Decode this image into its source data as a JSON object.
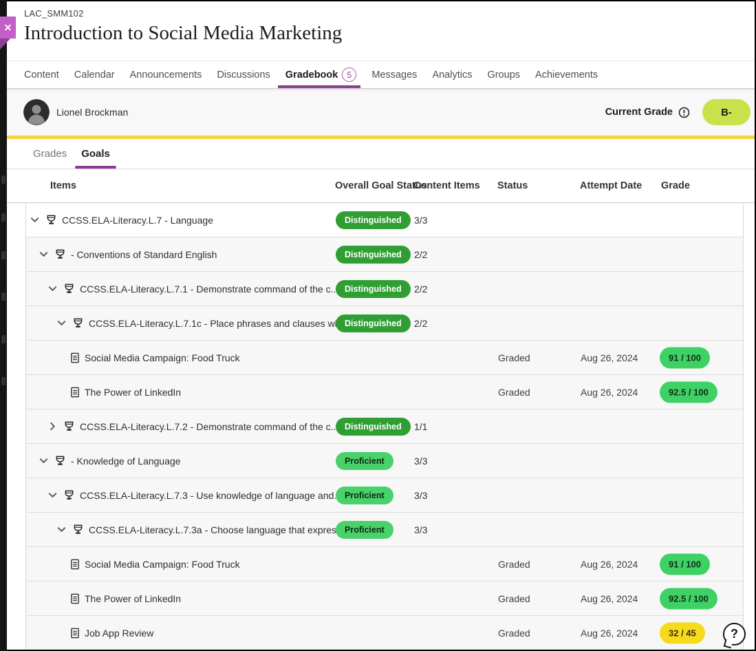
{
  "course": {
    "id": "LAC_SMM102",
    "title": "Introduction to Social Media Marketing"
  },
  "nav": {
    "items": [
      {
        "label": "Content",
        "active": false
      },
      {
        "label": "Calendar",
        "active": false
      },
      {
        "label": "Announcements",
        "active": false
      },
      {
        "label": "Discussions",
        "active": false
      },
      {
        "label": "Gradebook",
        "active": true,
        "badge": "5"
      },
      {
        "label": "Messages",
        "active": false
      },
      {
        "label": "Analytics",
        "active": false
      },
      {
        "label": "Groups",
        "active": false
      },
      {
        "label": "Achievements",
        "active": false
      }
    ]
  },
  "student": {
    "name": "Lionel Brockman",
    "current_grade_label": "Current Grade",
    "current_grade": "B-"
  },
  "subtabs": [
    {
      "label": "Grades",
      "active": false
    },
    {
      "label": "Goals",
      "active": true
    }
  ],
  "table": {
    "headers": [
      "Items",
      "Overall Goal Status",
      "Content Items",
      "Status",
      "Attempt Date",
      "Grade"
    ],
    "rows": [
      {
        "type": "goal",
        "indent": 0,
        "expanded": true,
        "label": "CCSS.ELA-Literacy.L.7 - Language",
        "goal_status": "Distinguished",
        "content_items": "3/3"
      },
      {
        "type": "goal",
        "indent": 1,
        "expanded": true,
        "label": "- Conventions of Standard English",
        "goal_status": "Distinguished",
        "content_items": "2/2"
      },
      {
        "type": "goal",
        "indent": 2,
        "expanded": true,
        "label": "CCSS.ELA-Literacy.L.7.1 - Demonstrate command of the c...",
        "goal_status": "Distinguished",
        "content_items": "2/2"
      },
      {
        "type": "goal",
        "indent": 3,
        "expanded": true,
        "label": "CCSS.ELA-Literacy.L.7.1c - Place phrases and clauses with...",
        "goal_status": "Distinguished",
        "content_items": "2/2"
      },
      {
        "type": "content",
        "label": "Social Media Campaign: Food Truck",
        "status": "Graded",
        "attempt_date": "Aug 26, 2024",
        "grade": "91 / 100",
        "grade_color": "green"
      },
      {
        "type": "content",
        "label": "The Power of LinkedIn",
        "status": "Graded",
        "attempt_date": "Aug 26, 2024",
        "grade": "92.5 / 100",
        "grade_color": "green"
      },
      {
        "type": "goal",
        "indent": 2,
        "expanded": false,
        "label": "CCSS.ELA-Literacy.L.7.2 - Demonstrate command of the c...",
        "goal_status": "Distinguished",
        "content_items": "1/1"
      },
      {
        "type": "goal",
        "indent": 1,
        "expanded": true,
        "label": "- Knowledge of Language",
        "goal_status": "Proficient",
        "content_items": "3/3"
      },
      {
        "type": "goal",
        "indent": 2,
        "expanded": true,
        "label": "CCSS.ELA-Literacy.L.7.3 - Use knowledge of language and...",
        "goal_status": "Proficient",
        "content_items": "3/3"
      },
      {
        "type": "goal",
        "indent": 3,
        "expanded": true,
        "label": "CCSS.ELA-Literacy.L.7.3a - Choose language that express...",
        "goal_status": "Proficient",
        "content_items": "3/3"
      },
      {
        "type": "content",
        "label": "Social Media Campaign: Food Truck",
        "status": "Graded",
        "attempt_date": "Aug 26, 2024",
        "grade": "91 / 100",
        "grade_color": "green"
      },
      {
        "type": "content",
        "label": "The Power of LinkedIn",
        "status": "Graded",
        "attempt_date": "Aug 26, 2024",
        "grade": "92.5 / 100",
        "grade_color": "green"
      },
      {
        "type": "content",
        "label": "Job App Review",
        "status": "Graded",
        "attempt_date": "Aug 26, 2024",
        "grade": "32 / 45",
        "grade_color": "yellow"
      }
    ]
  },
  "badge_colors": {
    "Distinguished": {
      "bg": "#2f9e33",
      "text": "#ffffff"
    },
    "Proficient": {
      "bg": "#49d16b",
      "text": "#0f2911"
    }
  },
  "grade_pill_colors": {
    "green": {
      "bg": "#3ed164",
      "text": "#0d2f16"
    },
    "yellow": {
      "bg": "#f6da1d",
      "text": "#3a3000"
    }
  },
  "colors": {
    "accent_purple": "#8d3c96",
    "accent_yellow_bar": "#f6d23d",
    "current_grade_pill_bg": "#c8e24b"
  },
  "help": {
    "label": "?"
  },
  "close_button": {
    "label": "✕"
  }
}
